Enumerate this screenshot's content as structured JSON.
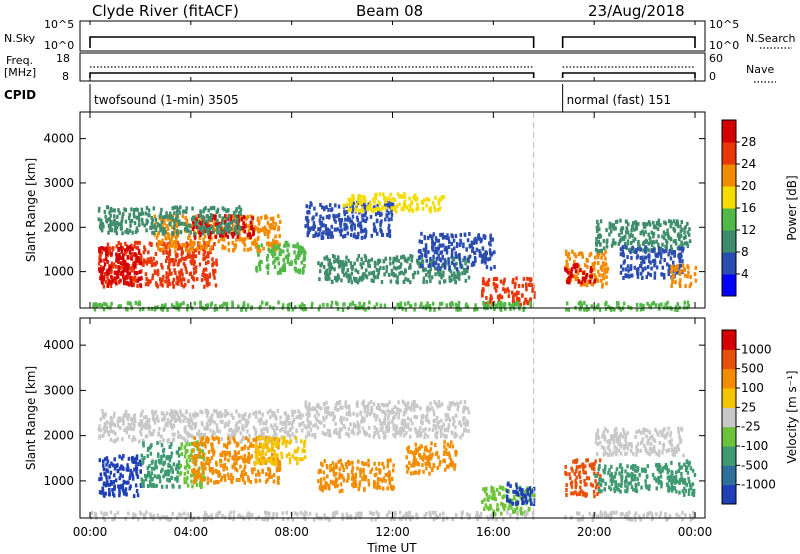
{
  "header": {
    "station": "Clyde River (fitACF)",
    "beam": "Beam 08",
    "date": "23/Aug/2018"
  },
  "mini_panels": {
    "nsky_label": "N.Sky",
    "nsky_ticks": [
      "10^5",
      "10^0"
    ],
    "nsearch_label": "N.Search",
    "nsearch_ticks": [
      "10^5",
      "10^0"
    ],
    "freq_label": "Freq.",
    "freq_unit": "[MHz]",
    "freq_ticks": [
      "18",
      "8"
    ],
    "nave_label": "Nave",
    "nave_ticks": [
      "60",
      "0"
    ],
    "cpid_label": "CPID",
    "cpid_segments": [
      {
        "label": "twofsound (1-min) 3505",
        "start_hour": 0.0,
        "end_hour": 17.6
      },
      {
        "label": "normal (fast) 151",
        "start_hour": 18.75,
        "end_hour": 24.0
      }
    ]
  },
  "x_axis": {
    "title": "Time UT",
    "tick_labels": [
      "00:00",
      "04:00",
      "08:00",
      "12:00",
      "16:00",
      "20:00",
      "00:00"
    ],
    "tick_hours": [
      0,
      4,
      8,
      12,
      16,
      20,
      24
    ]
  },
  "chart_data": [
    {
      "type": "heatmap",
      "quantity": "Power",
      "ylabel": "Slant Range [km]",
      "yticks": [
        "1000",
        "2000",
        "3000",
        "4000"
      ],
      "ylim": [
        180,
        4600
      ],
      "xlim_hours": [
        0,
        24
      ],
      "data_gap_hours": [
        17.6,
        18.75
      ],
      "colorbar_label": "Power [dB]",
      "colorbar_ticks": [
        "4",
        "8",
        "12",
        "16",
        "20",
        "24",
        "28"
      ],
      "colorbar_colors": [
        "#0000ff",
        "#2b4db0",
        "#3e8c6b",
        "#52b848",
        "#f5dc00",
        "#f28a00",
        "#e8380b",
        "#d40000"
      ]
    },
    {
      "type": "heatmap",
      "quantity": "Velocity",
      "ylabel": "Slant Range [km]",
      "yticks": [
        "1000",
        "2000",
        "3000",
        "4000"
      ],
      "ylim": [
        180,
        4600
      ],
      "xlim_hours": [
        0,
        24
      ],
      "data_gap_hours": [
        17.6,
        18.75
      ],
      "colorbar_label": "Velocity [m s⁻¹]",
      "colorbar_ticks": [
        "1000",
        "500",
        "100",
        "25",
        "-25",
        "-100",
        "-500",
        "-1000"
      ],
      "colorbar_colors": [
        "#1f3fb5",
        "#2f6f9c",
        "#3f9a72",
        "#6cc33a",
        "#c8c8c8",
        "#f5c400",
        "#f28c00",
        "#e8500a",
        "#d40000"
      ]
    }
  ],
  "echo_regions": {
    "power": [
      {
        "t0": 0.3,
        "t1": 5.0,
        "r0": 700,
        "r1": 1700,
        "c": "#e8380b"
      },
      {
        "t0": 0.3,
        "t1": 2.0,
        "r0": 700,
        "r1": 1600,
        "c": "#d40000"
      },
      {
        "t0": 2.5,
        "t1": 7.5,
        "r0": 1500,
        "r1": 2300,
        "c": "#f28a00"
      },
      {
        "t0": 4.0,
        "t1": 6.5,
        "r0": 1800,
        "r1": 2300,
        "c": "#d40000"
      },
      {
        "t0": 0.3,
        "t1": 6.0,
        "r0": 1900,
        "r1": 2500,
        "c": "#3e8c6b"
      },
      {
        "t0": 6.5,
        "t1": 8.5,
        "r0": 1000,
        "r1": 1700,
        "c": "#52b848"
      },
      {
        "t0": 8.5,
        "t1": 12.0,
        "r0": 1800,
        "r1": 2600,
        "c": "#2b4db0"
      },
      {
        "t0": 10.0,
        "t1": 14.0,
        "r0": 2400,
        "r1": 2800,
        "c": "#f5dc00"
      },
      {
        "t0": 9.0,
        "t1": 15.0,
        "r0": 800,
        "r1": 1400,
        "c": "#3e8c6b"
      },
      {
        "t0": 15.5,
        "t1": 17.6,
        "r0": 300,
        "r1": 900,
        "c": "#e8380b"
      },
      {
        "t0": 13.0,
        "t1": 16.0,
        "r0": 1100,
        "r1": 1900,
        "c": "#2b4db0"
      },
      {
        "t0": 18.8,
        "t1": 20.5,
        "r0": 700,
        "r1": 1500,
        "c": "#f28a00"
      },
      {
        "t0": 18.8,
        "t1": 20.0,
        "r0": 800,
        "r1": 1200,
        "c": "#d40000"
      },
      {
        "t0": 20.0,
        "t1": 23.8,
        "r0": 1500,
        "r1": 2200,
        "c": "#3e8c6b"
      },
      {
        "t0": 21.0,
        "t1": 23.5,
        "r0": 900,
        "r1": 1600,
        "c": "#2b4db0"
      },
      {
        "t0": 23.0,
        "t1": 24.0,
        "r0": 700,
        "r1": 1200,
        "c": "#f28a00"
      },
      {
        "t0": 0.0,
        "t1": 17.6,
        "r0": 180,
        "r1": 350,
        "c": "#52b848"
      },
      {
        "t0": 18.8,
        "t1": 24.0,
        "r0": 180,
        "r1": 350,
        "c": "#52b848"
      }
    ],
    "velocity": [
      {
        "t0": 0.3,
        "t1": 2.0,
        "r0": 700,
        "r1": 1600,
        "c": "#1f3fb5"
      },
      {
        "t0": 0.3,
        "t1": 8.5,
        "r0": 1900,
        "r1": 2600,
        "c": "#c8c8c8"
      },
      {
        "t0": 2.0,
        "t1": 3.5,
        "r0": 900,
        "r1": 1900,
        "c": "#3f9a72"
      },
      {
        "t0": 3.5,
        "t1": 4.5,
        "r0": 900,
        "r1": 1900,
        "c": "#6cc33a"
      },
      {
        "t0": 4.0,
        "t1": 7.5,
        "r0": 1000,
        "r1": 2000,
        "c": "#f28c00"
      },
      {
        "t0": 6.5,
        "t1": 8.5,
        "r0": 1400,
        "r1": 2000,
        "c": "#f5c400"
      },
      {
        "t0": 8.5,
        "t1": 15.0,
        "r0": 2000,
        "r1": 2800,
        "c": "#c8c8c8"
      },
      {
        "t0": 9.0,
        "t1": 12.0,
        "r0": 800,
        "r1": 1500,
        "c": "#f28c00"
      },
      {
        "t0": 12.5,
        "t1": 14.5,
        "r0": 1200,
        "r1": 1900,
        "c": "#f28c00"
      },
      {
        "t0": 15.5,
        "t1": 17.6,
        "r0": 300,
        "r1": 900,
        "c": "#6cc33a"
      },
      {
        "t0": 16.5,
        "t1": 17.6,
        "r0": 500,
        "r1": 1000,
        "c": "#1f3fb5"
      },
      {
        "t0": 18.8,
        "t1": 20.2,
        "r0": 700,
        "r1": 1500,
        "c": "#e8500a"
      },
      {
        "t0": 20.0,
        "t1": 23.5,
        "r0": 1600,
        "r1": 2200,
        "c": "#c8c8c8"
      },
      {
        "t0": 20.0,
        "t1": 23.0,
        "r0": 800,
        "r1": 1400,
        "c": "#3f9a72"
      },
      {
        "t0": 23.0,
        "t1": 24.0,
        "r0": 700,
        "r1": 1500,
        "c": "#3f9a72"
      },
      {
        "t0": 0.0,
        "t1": 17.6,
        "r0": 180,
        "r1": 350,
        "c": "#c8c8c8"
      },
      {
        "t0": 18.8,
        "t1": 24.0,
        "r0": 180,
        "r1": 350,
        "c": "#c8c8c8"
      }
    ]
  }
}
